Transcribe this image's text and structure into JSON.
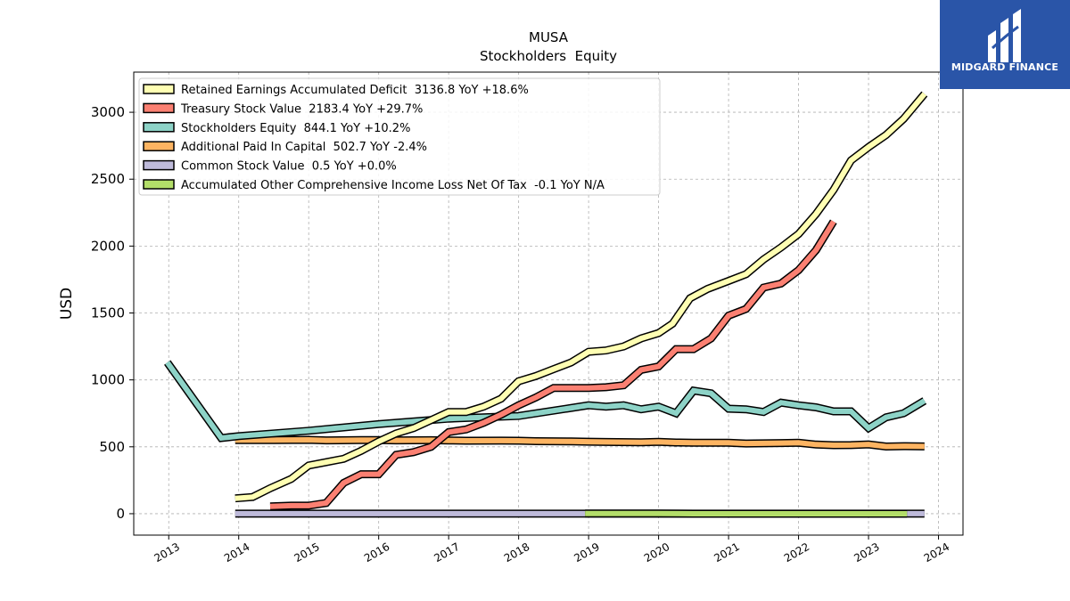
{
  "brand": {
    "name": "MIDGARD FINANCE",
    "logo_icon": "midgard-logo-icon",
    "color": "#2a55a8"
  },
  "chart_data": {
    "type": "line",
    "title": "MUSA",
    "subtitle": "Stockholders  Equity",
    "xlabel": "",
    "ylabel": "USD",
    "xlim": [
      2012.5,
      2024.35
    ],
    "ylim": [
      -160,
      3300
    ],
    "x_ticks": [
      "2013",
      "2014",
      "2015",
      "2016",
      "2017",
      "2018",
      "2019",
      "2020",
      "2021",
      "2022",
      "2023",
      "2024"
    ],
    "y_ticks": [
      0,
      500,
      1000,
      1500,
      2000,
      2500,
      3000
    ],
    "grid": true,
    "legend_position": "top-left",
    "series": [
      {
        "name": "Retained Earnings Accumulated Deficit",
        "legend_label": "Retained Earnings Accumulated Deficit  3136.8 YoY +18.6%",
        "color": "#ffffb3",
        "x": [
          2013.95,
          2014.2,
          2014.45,
          2014.75,
          2015.0,
          2015.25,
          2015.5,
          2015.75,
          2016.0,
          2016.25,
          2016.5,
          2016.75,
          2017.0,
          2017.25,
          2017.5,
          2017.75,
          2018.0,
          2018.25,
          2018.5,
          2018.75,
          2019.0,
          2019.25,
          2019.5,
          2019.75,
          2020.0,
          2020.2,
          2020.45,
          2020.7,
          2021.0,
          2021.25,
          2021.5,
          2021.75,
          2022.0,
          2022.25,
          2022.5,
          2022.75,
          2023.0,
          2023.25,
          2023.5,
          2023.8
        ],
        "y": [
          115,
          125,
          190,
          260,
          360,
          385,
          410,
          470,
          540,
          600,
          640,
          700,
          760,
          760,
          800,
          860,
          990,
          1030,
          1080,
          1130,
          1210,
          1220,
          1250,
          1310,
          1350,
          1420,
          1610,
          1680,
          1740,
          1790,
          1900,
          1990,
          2090,
          2240,
          2420,
          2640,
          2740,
          2830,
          2950,
          3136.8
        ]
      },
      {
        "name": "Treasury Stock Value",
        "legend_label": "Treasury Stock Value  2183.4 YoY +29.7%",
        "color": "#fb8072",
        "x": [
          2014.45,
          2014.75,
          2015.0,
          2015.25,
          2015.5,
          2015.75,
          2016.0,
          2016.25,
          2016.5,
          2016.75,
          2017.0,
          2017.25,
          2017.5,
          2017.75,
          2018.0,
          2018.25,
          2018.5,
          2018.75,
          2019.0,
          2019.25,
          2019.5,
          2019.75,
          2020.0,
          2020.25,
          2020.5,
          2020.75,
          2021.0,
          2021.25,
          2021.5,
          2021.75,
          2022.0,
          2022.25,
          2022.5
        ],
        "y": [
          55,
          60,
          60,
          80,
          230,
          295,
          295,
          440,
          460,
          500,
          610,
          630,
          680,
          740,
          810,
          870,
          940,
          940,
          940,
          945,
          960,
          1075,
          1100,
          1230,
          1230,
          1310,
          1480,
          1530,
          1690,
          1720,
          1820,
          1970,
          2183.4
        ]
      },
      {
        "name": "Stockholders Equity",
        "legend_label": "Stockholders Equity  844.1 YoY +10.2%",
        "color": "#8dd3c7",
        "x": [
          2012.98,
          2013.75,
          2014.0,
          2015.0,
          2016.0,
          2017.0,
          2018.0,
          2019.0,
          2019.25,
          2019.5,
          2019.75,
          2020.0,
          2020.25,
          2020.5,
          2020.75,
          2021.0,
          2021.25,
          2021.5,
          2021.75,
          2022.0,
          2022.25,
          2022.5,
          2022.75,
          2023.0,
          2023.25,
          2023.5,
          2023.8
        ],
        "y": [
          1130,
          565,
          580,
          620,
          670,
          710,
          730,
          810,
          800,
          810,
          780,
          800,
          750,
          920,
          900,
          785,
          780,
          760,
          830,
          810,
          795,
          765,
          765,
          640,
          720,
          750,
          844.1
        ]
      },
      {
        "name": "Additional Paid In Capital",
        "legend_label": "Additional Paid In Capital  502.7 YoY -2.4%",
        "color": "#fdb462",
        "x": [
          2013.95,
          2014.5,
          2015.0,
          2015.25,
          2015.75,
          2016.0,
          2016.25,
          2016.75,
          2017.0,
          2017.25,
          2017.75,
          2018.0,
          2018.25,
          2018.75,
          2019.0,
          2019.25,
          2019.75,
          2020.0,
          2020.25,
          2020.5,
          2020.75,
          2021.0,
          2021.25,
          2021.75,
          2022.0,
          2022.25,
          2022.5,
          2022.75,
          2023.0,
          2023.25,
          2023.5,
          2023.8
        ],
        "y": [
          550,
          550,
          552,
          548,
          550,
          550,
          548,
          549,
          547,
          545,
          546,
          545,
          542,
          540,
          538,
          536,
          534,
          537,
          532,
          531,
          530,
          530,
          525,
          528,
          530,
          517,
          512,
          513,
          518,
          502,
          505,
          502.7
        ]
      },
      {
        "name": "Common Stock Value",
        "legend_label": "Common Stock Value  0.5 YoY +0.0%",
        "color": "#bebada",
        "x": [
          2013.95,
          2014.5,
          2015.0,
          2016.0,
          2017.0,
          2018.0,
          2019.0,
          2020.0,
          2021.0,
          2022.0,
          2023.0,
          2023.8
        ],
        "y": [
          0.5,
          0.5,
          0.5,
          0.5,
          0.5,
          0.5,
          0.5,
          0.5,
          0.5,
          0.5,
          0.5,
          0.5
        ]
      },
      {
        "name": "Accumulated Other Comprehensive Income Loss Net Of Tax",
        "legend_label": "Accumulated Other Comprehensive Income Loss Net Of Tax  -0.1 YoY N/A",
        "color": "#b3de69",
        "x": [
          2018.95,
          2019.5,
          2020.0,
          2020.5,
          2021.0,
          2021.5,
          2022.0,
          2022.5,
          2023.0,
          2023.55
        ],
        "y": [
          2,
          2,
          2,
          0,
          0,
          0,
          0,
          0,
          0,
          -0.1
        ]
      }
    ]
  }
}
